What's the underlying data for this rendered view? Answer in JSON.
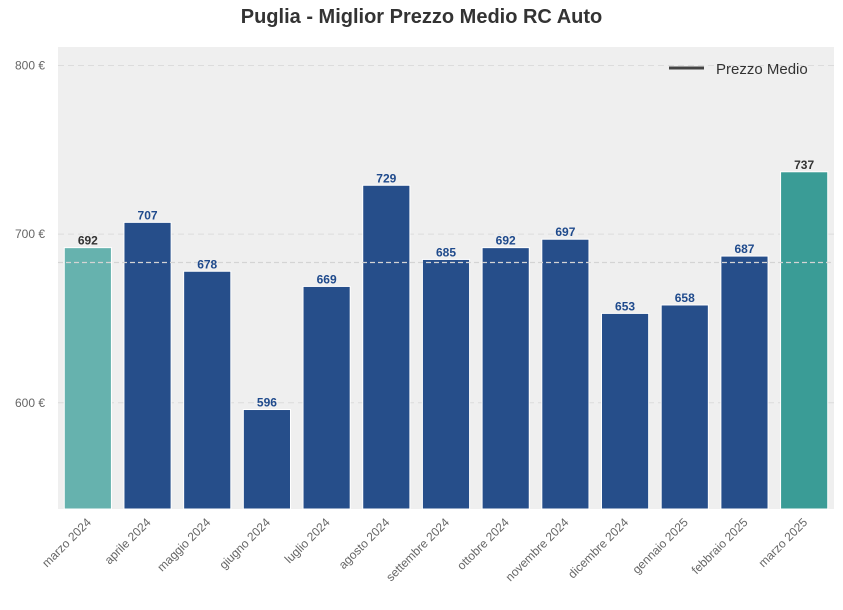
{
  "chart_data": {
    "type": "bar",
    "title": "Puglia - Miglior Prezzo Medio RC Auto",
    "xlabel": "",
    "ylabel": "",
    "categories": [
      "marzo 2024",
      "aprile 2024",
      "maggio 2024",
      "giugno 2024",
      "luglio 2024",
      "agosto 2024",
      "settembre 2024",
      "ottobre 2024",
      "novembre 2024",
      "dicembre 2024",
      "gennaio 2025",
      "febbraio 2025",
      "marzo 2025"
    ],
    "values": [
      692,
      707,
      678,
      596,
      669,
      729,
      685,
      692,
      697,
      653,
      658,
      687,
      737
    ],
    "value_labels": [
      "692",
      "707",
      "678",
      "596",
      "669",
      "729",
      "685",
      "692",
      "697",
      "653",
      "658",
      "687",
      "737"
    ],
    "bar_colors": [
      "#66b2ae",
      "#264e8a",
      "#264e8a",
      "#264e8a",
      "#264e8a",
      "#264e8a",
      "#264e8a",
      "#264e8a",
      "#264e8a",
      "#264e8a",
      "#264e8a",
      "#264e8a",
      "#3a9c96"
    ],
    "label_colors": [
      "#333333",
      "#1f4a8c",
      "#1f4a8c",
      "#1f4a8c",
      "#1f4a8c",
      "#1f4a8c",
      "#1f4a8c",
      "#1f4a8c",
      "#1f4a8c",
      "#1f4a8c",
      "#1f4a8c",
      "#1f4a8c",
      "#333333"
    ],
    "yticks": [
      600,
      700,
      800
    ],
    "ytick_labels": [
      "600 €",
      "700 €",
      "800 €"
    ],
    "ylim": [
      537,
      811
    ],
    "reference_line": 683.2,
    "legend": {
      "label": "Prezzo Medio",
      "position": "top-right"
    },
    "grid": true,
    "background": "#efefef"
  }
}
